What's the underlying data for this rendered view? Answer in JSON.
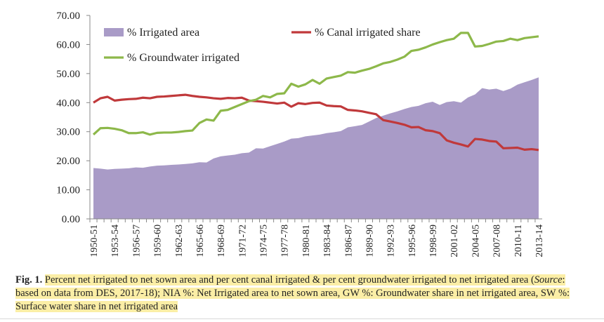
{
  "chart_data": {
    "type": "area-line",
    "categories": [
      "1950-51",
      null,
      null,
      "1953-54",
      null,
      null,
      "1956-57",
      null,
      null,
      "1959-60",
      null,
      null,
      "1962-63",
      null,
      null,
      "1965-66",
      null,
      null,
      "1968-69",
      null,
      null,
      "1971-72",
      null,
      null,
      "1974-75",
      null,
      null,
      "1977-78",
      null,
      null,
      "1980-81",
      null,
      null,
      "1983-84",
      null,
      null,
      "1986-87",
      null,
      null,
      "1989-90",
      null,
      null,
      "1992-93",
      null,
      null,
      "1995-96",
      null,
      null,
      "1998-99",
      null,
      null,
      "2001-02",
      null,
      null,
      "2004-05",
      null,
      null,
      "2007-08",
      null,
      null,
      "2010-11",
      null,
      null,
      "2013-14"
    ],
    "series": [
      {
        "name": "% Irrigated area",
        "kind": "area",
        "color": "#a99bc7",
        "values": [
          17.5,
          17.3,
          17.0,
          17.2,
          17.3,
          17.4,
          17.7,
          17.6,
          18.0,
          18.3,
          18.4,
          18.6,
          18.7,
          18.9,
          19.1,
          19.5,
          19.4,
          20.8,
          21.5,
          21.8,
          22.1,
          22.6,
          22.8,
          24.3,
          24.2,
          25.0,
          25.8,
          26.6,
          27.6,
          27.8,
          28.4,
          28.7,
          29.0,
          29.5,
          29.8,
          30.2,
          31.5,
          31.9,
          32.3,
          33.5,
          34.7,
          35.5,
          36.3,
          37.0,
          37.8,
          38.5,
          38.9,
          39.8,
          40.3,
          39.2,
          40.2,
          40.5,
          40.0,
          41.8,
          42.8,
          45.0,
          44.5,
          44.8,
          44.0,
          44.8,
          46.2,
          47.0,
          47.8,
          48.7
        ]
      },
      {
        "name": "% Canal irrigated share",
        "kind": "line",
        "color": "#c0393b",
        "values": [
          40.0,
          41.5,
          42.0,
          40.7,
          41.0,
          41.2,
          41.3,
          41.7,
          41.5,
          42.0,
          42.1,
          42.3,
          42.5,
          42.7,
          42.3,
          42.0,
          41.8,
          41.5,
          41.3,
          41.6,
          41.5,
          41.7,
          40.7,
          40.5,
          40.3,
          40.0,
          39.7,
          40.0,
          38.6,
          39.8,
          39.5,
          39.9,
          40.0,
          39.0,
          38.8,
          38.7,
          37.5,
          37.3,
          37.0,
          36.5,
          36.0,
          34.0,
          33.5,
          33.0,
          32.4,
          31.5,
          31.6,
          30.5,
          30.2,
          29.5,
          27.0,
          26.2,
          25.6,
          24.9,
          27.5,
          27.3,
          26.8,
          26.6,
          24.3,
          24.4,
          24.5,
          23.8,
          24.0,
          23.7
        ]
      },
      {
        "name": "% Groundwater irrigated",
        "kind": "line",
        "color": "#8db84a",
        "values": [
          29.0,
          31.2,
          31.3,
          31.0,
          30.5,
          29.5,
          29.5,
          29.8,
          29.0,
          29.6,
          29.7,
          29.7,
          29.9,
          30.2,
          30.4,
          33.0,
          34.2,
          33.8,
          37.2,
          37.5,
          38.5,
          39.5,
          40.5,
          41.0,
          42.3,
          41.8,
          43.0,
          43.2,
          46.5,
          45.5,
          46.3,
          47.8,
          46.5,
          48.3,
          48.8,
          49.3,
          50.5,
          50.3,
          51.0,
          51.6,
          52.5,
          53.5,
          54.0,
          54.8,
          55.8,
          57.8,
          58.2,
          59.0,
          60.0,
          60.8,
          61.5,
          62.0,
          64.0,
          64.0,
          59.3,
          59.5,
          60.2,
          61.0,
          61.2,
          62.0,
          61.5,
          62.2,
          62.5,
          62.8
        ]
      }
    ],
    "ylim": [
      0,
      70
    ],
    "yticks": [
      {
        "value": 0,
        "label": "0.00"
      },
      {
        "value": 10,
        "label": "10.00"
      },
      {
        "value": 20,
        "label": "20.00"
      },
      {
        "value": 30,
        "label": "30.00"
      },
      {
        "value": 40,
        "label": "40.00"
      },
      {
        "value": 50,
        "label": "50.00"
      },
      {
        "value": 60,
        "label": "60.00"
      },
      {
        "value": 70,
        "label": "70.00"
      }
    ],
    "grid": false,
    "legend": "top-left"
  },
  "caption": {
    "label": "Fig. 1.",
    "text1": "Percent net irrigated to net sown area and per cent canal irrigated & per cent groundwater irrigated to net irrigated area (",
    "source": "Source",
    "text2": ": based on data from DES, 2017-18); NIA %: Net Irrigated area to net sown area, GW %: Groundwater share in net irrigated area, SW %: Surface water share in net irrigated area"
  }
}
